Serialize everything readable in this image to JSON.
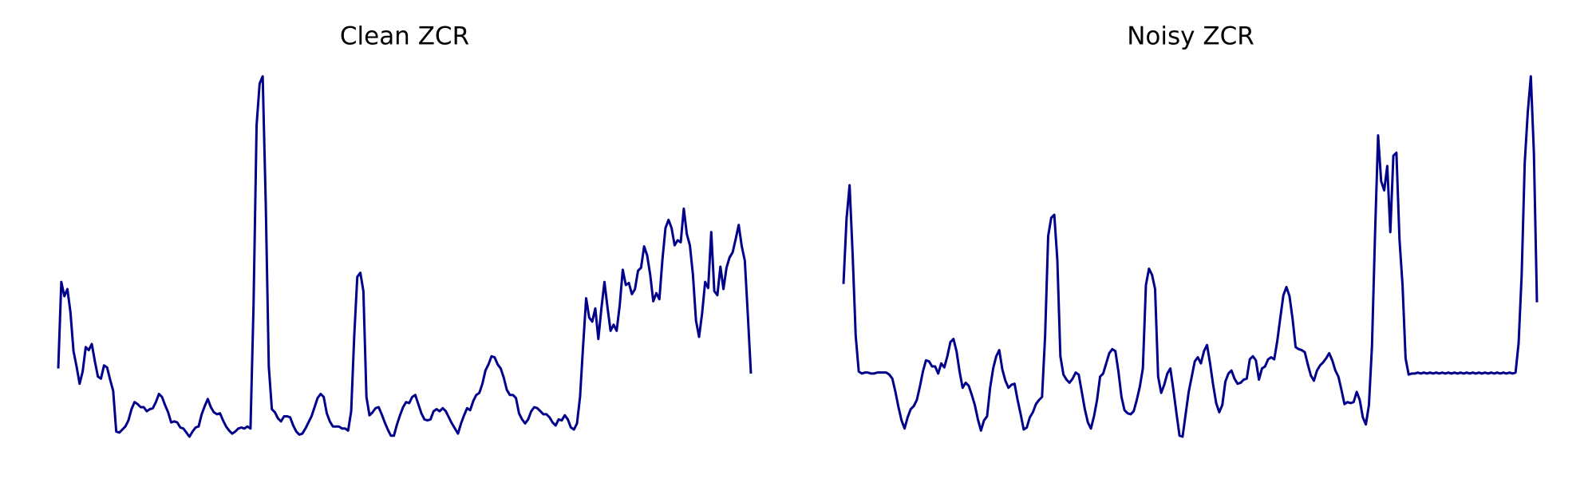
{
  "chart_data": [
    {
      "type": "line",
      "title": "Clean ZCR",
      "color": "#00008b",
      "ylim": [
        0,
        0.38
      ],
      "values": [
        0.078,
        0.163,
        0.149,
        0.156,
        0.133,
        0.095,
        0.08,
        0.063,
        0.075,
        0.099,
        0.096,
        0.102,
        0.085,
        0.07,
        0.068,
        0.081,
        0.079,
        0.067,
        0.056,
        0.016,
        0.015,
        0.018,
        0.021,
        0.027,
        0.038,
        0.045,
        0.043,
        0.04,
        0.04,
        0.036,
        0.038,
        0.039,
        0.045,
        0.053,
        0.05,
        0.042,
        0.035,
        0.025,
        0.026,
        0.025,
        0.02,
        0.019,
        0.015,
        0.011,
        0.016,
        0.02,
        0.021,
        0.033,
        0.041,
        0.048,
        0.04,
        0.035,
        0.033,
        0.034,
        0.027,
        0.021,
        0.017,
        0.014,
        0.016,
        0.019,
        0.02,
        0.019,
        0.021,
        0.019,
        0.14,
        0.317,
        0.358,
        0.365,
        0.24,
        0.08,
        0.038,
        0.035,
        0.029,
        0.026,
        0.031,
        0.031,
        0.03,
        0.022,
        0.016,
        0.013,
        0.014,
        0.019,
        0.025,
        0.031,
        0.04,
        0.049,
        0.053,
        0.05,
        0.034,
        0.026,
        0.021,
        0.021,
        0.021,
        0.019,
        0.019,
        0.017,
        0.036,
        0.11,
        0.168,
        0.172,
        0.154,
        0.05,
        0.032,
        0.035,
        0.039,
        0.04,
        0.033,
        0.025,
        0.018,
        0.012,
        0.012,
        0.023,
        0.032,
        0.04,
        0.045,
        0.044,
        0.05,
        0.052,
        0.043,
        0.034,
        0.028,
        0.027,
        0.028,
        0.036,
        0.038,
        0.036,
        0.039,
        0.036,
        0.03,
        0.024,
        0.019,
        0.014,
        0.024,
        0.032,
        0.039,
        0.037,
        0.046,
        0.052,
        0.054,
        0.063,
        0.076,
        0.082,
        0.09,
        0.089,
        0.082,
        0.078,
        0.069,
        0.057,
        0.052,
        0.052,
        0.049,
        0.034,
        0.028,
        0.024,
        0.028,
        0.036,
        0.04,
        0.039,
        0.036,
        0.033,
        0.033,
        0.03,
        0.025,
        0.022,
        0.028,
        0.027,
        0.032,
        0.028,
        0.02,
        0.018,
        0.024,
        0.05,
        0.1,
        0.147,
        0.128,
        0.124,
        0.137,
        0.107,
        0.137,
        0.163,
        0.138,
        0.115,
        0.121,
        0.115,
        0.14,
        0.175,
        0.16,
        0.162,
        0.151,
        0.156,
        0.174,
        0.177,
        0.198,
        0.189,
        0.17,
        0.144,
        0.152,
        0.146,
        0.185,
        0.216,
        0.224,
        0.216,
        0.199,
        0.204,
        0.202,
        0.235,
        0.21,
        0.199,
        0.17,
        0.125,
        0.109,
        0.132,
        0.163,
        0.157,
        0.212,
        0.154,
        0.15,
        0.178,
        0.156,
        0.177,
        0.187,
        0.192,
        0.205,
        0.219,
        0.198,
        0.184,
        0.13,
        0.073
      ]
    },
    {
      "type": "line",
      "title": "Noisy ZCR",
      "color": "#00008b",
      "ylim": [
        0,
        0.38
      ],
      "values": [
        0.161,
        0.225,
        0.258,
        0.19,
        0.11,
        0.075,
        0.073,
        0.074,
        0.074,
        0.073,
        0.073,
        0.074,
        0.074,
        0.074,
        0.074,
        0.072,
        0.068,
        0.055,
        0.04,
        0.027,
        0.019,
        0.03,
        0.038,
        0.041,
        0.047,
        0.06,
        0.075,
        0.086,
        0.085,
        0.08,
        0.08,
        0.073,
        0.083,
        0.079,
        0.09,
        0.104,
        0.107,
        0.095,
        0.075,
        0.059,
        0.064,
        0.061,
        0.052,
        0.042,
        0.028,
        0.017,
        0.027,
        0.031,
        0.059,
        0.078,
        0.09,
        0.096,
        0.077,
        0.066,
        0.059,
        0.062,
        0.063,
        0.047,
        0.033,
        0.018,
        0.02,
        0.03,
        0.035,
        0.043,
        0.047,
        0.05,
        0.11,
        0.208,
        0.226,
        0.229,
        0.185,
        0.09,
        0.072,
        0.067,
        0.064,
        0.068,
        0.074,
        0.072,
        0.055,
        0.038,
        0.025,
        0.019,
        0.031,
        0.047,
        0.07,
        0.073,
        0.083,
        0.093,
        0.097,
        0.095,
        0.075,
        0.05,
        0.037,
        0.034,
        0.033,
        0.036,
        0.047,
        0.06,
        0.078,
        0.16,
        0.176,
        0.17,
        0.156,
        0.07,
        0.054,
        0.062,
        0.073,
        0.078,
        0.057,
        0.034,
        0.012,
        0.011,
        0.033,
        0.055,
        0.07,
        0.085,
        0.089,
        0.083,
        0.095,
        0.101,
        0.083,
        0.062,
        0.044,
        0.035,
        0.042,
        0.065,
        0.073,
        0.076,
        0.068,
        0.063,
        0.064,
        0.067,
        0.068,
        0.087,
        0.09,
        0.086,
        0.067,
        0.078,
        0.08,
        0.087,
        0.089,
        0.087,
        0.105,
        0.128,
        0.15,
        0.158,
        0.149,
        0.127,
        0.099,
        0.097,
        0.096,
        0.094,
        0.082,
        0.071,
        0.066,
        0.076,
        0.081,
        0.084,
        0.088,
        0.093,
        0.086,
        0.076,
        0.07,
        0.057,
        0.043,
        0.045,
        0.044,
        0.045,
        0.055,
        0.047,
        0.03,
        0.023,
        0.042,
        0.1,
        0.21,
        0.307,
        0.262,
        0.253,
        0.277,
        0.212,
        0.287,
        0.29,
        0.205,
        0.16,
        0.088,
        0.072,
        0.073,
        0.073,
        0.074,
        0.073,
        0.074,
        0.073,
        0.074,
        0.073,
        0.074,
        0.073,
        0.074,
        0.073,
        0.074,
        0.073,
        0.074,
        0.073,
        0.074,
        0.073,
        0.074,
        0.073,
        0.074,
        0.073,
        0.074,
        0.073,
        0.074,
        0.073,
        0.074,
        0.073,
        0.074,
        0.073,
        0.074,
        0.073,
        0.074,
        0.073,
        0.074,
        0.103,
        0.17,
        0.28,
        0.33,
        0.365,
        0.29,
        0.143
      ]
    }
  ]
}
